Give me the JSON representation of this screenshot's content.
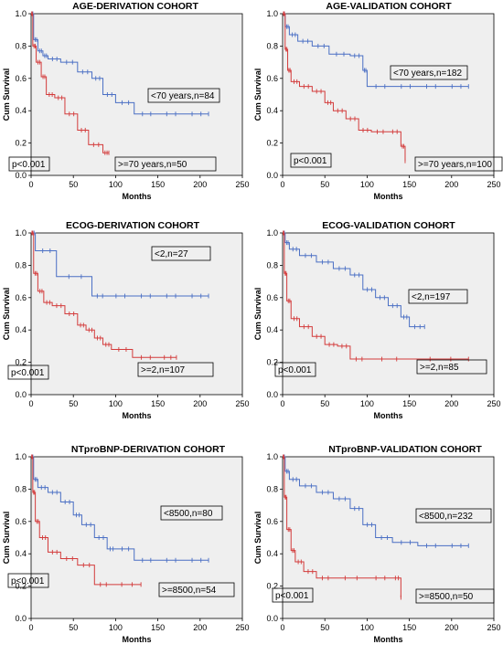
{
  "colors": {
    "plot_bg": "#efefef",
    "blue": "#4a6fc4",
    "red": "#d33b3b"
  },
  "chart_data": [
    {
      "type": "line",
      "title": "AGE-DERIVATION COHORT",
      "xlabel": "Months",
      "ylabel": "Cum Survival",
      "xlim": [
        0,
        250
      ],
      "ylim": [
        0,
        1.0
      ],
      "xticks": [
        "0",
        "50",
        "100",
        "150",
        "200",
        "250"
      ],
      "yticks": [
        "0.0",
        "0.2",
        "0.4",
        "0.6",
        "0.8",
        "1.0"
      ],
      "grid": false,
      "censor_marks": true,
      "series": [
        {
          "name": "<70 years,n=84",
          "color": "#4a6fc4",
          "x": [
            0,
            3,
            8,
            14,
            20,
            35,
            55,
            72,
            85,
            100,
            122,
            150,
            180,
            210
          ],
          "y": [
            1.0,
            0.84,
            0.77,
            0.74,
            0.72,
            0.7,
            0.64,
            0.6,
            0.5,
            0.45,
            0.38,
            0.38,
            0.38,
            0.38
          ]
        },
        {
          "name": ">=70 years,n=50",
          "color": "#d33b3b",
          "x": [
            0,
            2,
            6,
            12,
            18,
            28,
            40,
            55,
            68,
            85,
            92
          ],
          "y": [
            1.0,
            0.8,
            0.7,
            0.61,
            0.5,
            0.48,
            0.38,
            0.28,
            0.19,
            0.14,
            0.14
          ]
        }
      ],
      "annotations": [
        "p<0.001"
      ]
    },
    {
      "type": "line",
      "title": "AGE-VALIDATION COHORT",
      "xlabel": "Months",
      "ylabel": "Cum Survival",
      "xlim": [
        0,
        250
      ],
      "ylim": [
        0,
        1.0
      ],
      "xticks": [
        "0",
        "50",
        "100",
        "150",
        "200",
        "250"
      ],
      "yticks": [
        "0.0",
        "0.2",
        "0.4",
        "0.6",
        "0.8",
        "1.0"
      ],
      "grid": false,
      "censor_marks": true,
      "series": [
        {
          "name": "<70 years,n=182",
          "color": "#4a6fc4",
          "x": [
            0,
            3,
            8,
            18,
            35,
            55,
            80,
            95,
            100,
            130,
            160,
            190,
            220
          ],
          "y": [
            1.0,
            0.92,
            0.87,
            0.83,
            0.8,
            0.75,
            0.74,
            0.65,
            0.55,
            0.55,
            0.55,
            0.55,
            0.55
          ]
        },
        {
          "name": ">=70 years,n=100",
          "color": "#d33b3b",
          "x": [
            0,
            3,
            6,
            10,
            20,
            35,
            50,
            60,
            75,
            90,
            105,
            125,
            140,
            145
          ],
          "y": [
            1.0,
            0.78,
            0.65,
            0.58,
            0.55,
            0.52,
            0.45,
            0.4,
            0.35,
            0.28,
            0.27,
            0.27,
            0.18,
            0.09
          ]
        }
      ],
      "annotations": [
        "p<0.001"
      ]
    },
    {
      "type": "line",
      "title": "ECOG-DERIVATION COHORT",
      "xlabel": "Months",
      "ylabel": "Cum Survival",
      "xlim": [
        0,
        250
      ],
      "ylim": [
        0,
        1.0
      ],
      "xticks": [
        "0",
        "50",
        "100",
        "150",
        "200",
        "250"
      ],
      "yticks": [
        "0.0",
        "0.2",
        "0.4",
        "0.6",
        "0.8",
        "1.0"
      ],
      "grid": false,
      "censor_marks": true,
      "series": [
        {
          "name": "<2,n=27",
          "color": "#4a6fc4",
          "x": [
            0,
            5,
            30,
            72,
            90,
            120,
            150,
            180,
            210
          ],
          "y": [
            1.0,
            0.89,
            0.73,
            0.61,
            0.61,
            0.61,
            0.61,
            0.61,
            0.61
          ]
        },
        {
          "name": ">=2,n=107",
          "color": "#d33b3b",
          "x": [
            0,
            3,
            8,
            15,
            25,
            40,
            55,
            65,
            75,
            85,
            95,
            120,
            150,
            172
          ],
          "y": [
            1.0,
            0.75,
            0.64,
            0.57,
            0.55,
            0.5,
            0.43,
            0.4,
            0.35,
            0.31,
            0.28,
            0.23,
            0.23,
            0.23
          ]
        }
      ],
      "annotations": [
        "p<0.001"
      ]
    },
    {
      "type": "line",
      "title": "ECOG-VALIDATION COHORT",
      "xlabel": "Months",
      "ylabel": "Cum Survival",
      "xlim": [
        0,
        250
      ],
      "ylim": [
        0,
        1.0
      ],
      "xticks": [
        "0",
        "50",
        "100",
        "150",
        "200",
        "250"
      ],
      "yticks": [
        "0.0",
        "0.2",
        "0.4",
        "0.6",
        "0.8",
        "1.0"
      ],
      "grid": false,
      "censor_marks": true,
      "series": [
        {
          "name": "<2,n=197",
          "color": "#4a6fc4",
          "x": [
            0,
            3,
            8,
            20,
            40,
            60,
            80,
            95,
            110,
            125,
            140,
            150,
            168
          ],
          "y": [
            1.0,
            0.94,
            0.9,
            0.86,
            0.82,
            0.78,
            0.74,
            0.65,
            0.6,
            0.55,
            0.48,
            0.42,
            0.42
          ]
        },
        {
          "name": ">=2,n=85",
          "color": "#d33b3b",
          "x": [
            0,
            2,
            5,
            10,
            20,
            35,
            50,
            65,
            80,
            100,
            150,
            220
          ],
          "y": [
            1.0,
            0.75,
            0.58,
            0.47,
            0.42,
            0.36,
            0.31,
            0.3,
            0.22,
            0.22,
            0.22,
            0.22
          ]
        }
      ],
      "annotations": [
        "p<0.001"
      ]
    },
    {
      "type": "line",
      "title": "NTproBNP-DERIVATION COHORT",
      "xlabel": "Months",
      "ylabel": "Cum Survival",
      "xlim": [
        0,
        250
      ],
      "ylim": [
        0,
        1.0
      ],
      "xticks": [
        "0",
        "50",
        "100",
        "150",
        "200",
        "250"
      ],
      "yticks": [
        "0.0",
        "0.2",
        "0.4",
        "0.6",
        "0.8",
        "1.0"
      ],
      "grid": false,
      "censor_marks": true,
      "series": [
        {
          "name": "<8500,n=80",
          "color": "#4a6fc4",
          "x": [
            0,
            3,
            8,
            20,
            35,
            50,
            60,
            75,
            90,
            100,
            122,
            150,
            180,
            210
          ],
          "y": [
            1.0,
            0.86,
            0.81,
            0.78,
            0.72,
            0.64,
            0.58,
            0.5,
            0.43,
            0.43,
            0.36,
            0.36,
            0.36,
            0.36
          ]
        },
        {
          "name": ">=8500,n=54",
          "color": "#d33b3b",
          "x": [
            0,
            2,
            5,
            10,
            20,
            35,
            55,
            75,
            95,
            130
          ],
          "y": [
            1.0,
            0.78,
            0.6,
            0.5,
            0.41,
            0.37,
            0.33,
            0.21,
            0.21,
            0.21
          ]
        }
      ],
      "annotations": [
        "p<0.001"
      ]
    },
    {
      "type": "line",
      "title": "NTproBNP-VALIDATION COHORT",
      "xlabel": "Months",
      "ylabel": "Cum Survival",
      "xlim": [
        0,
        250
      ],
      "ylim": [
        0,
        1.0
      ],
      "xticks": [
        "0",
        "50",
        "100",
        "150",
        "200",
        "250"
      ],
      "yticks": [
        "0.0",
        "0.2",
        "0.4",
        "0.6",
        "0.8",
        "1.0"
      ],
      "grid": false,
      "censor_marks": true,
      "series": [
        {
          "name": "<8500,n=232",
          "color": "#4a6fc4",
          "x": [
            0,
            3,
            8,
            20,
            40,
            60,
            80,
            95,
            110,
            130,
            160,
            190,
            220
          ],
          "y": [
            1.0,
            0.91,
            0.86,
            0.82,
            0.78,
            0.74,
            0.68,
            0.58,
            0.5,
            0.47,
            0.45,
            0.45,
            0.45
          ]
        },
        {
          "name": ">=8500,n=50",
          "color": "#d33b3b",
          "x": [
            0,
            2,
            5,
            10,
            15,
            25,
            40,
            60,
            100,
            130,
            140
          ],
          "y": [
            1.0,
            0.75,
            0.55,
            0.42,
            0.35,
            0.29,
            0.25,
            0.25,
            0.25,
            0.25,
            0.13
          ]
        }
      ],
      "annotations": [
        "p<0.001"
      ]
    }
  ]
}
